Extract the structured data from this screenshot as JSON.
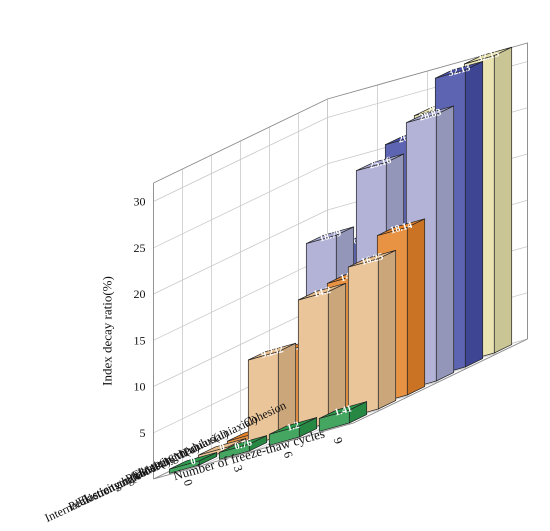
{
  "chart_data": {
    "type": "bar",
    "subtype": "3d-grouped",
    "zlabel": "Index decay ratio(%)",
    "xlabel": "Number of freeze-thaw cycles",
    "x": [
      "0",
      "3",
      "6",
      "9"
    ],
    "zticks": [
      "5",
      "10",
      "15",
      "20",
      "25",
      "30"
    ],
    "zlim": [
      0,
      32
    ],
    "grid": true,
    "series": [
      {
        "name": "Cohesion",
        "values": [
          0,
          18.21,
          28.08,
          32.15
        ],
        "labels": [
          "0",
          "18.21",
          "28.08",
          "32.15"
        ],
        "color": "#e6e0a8"
      },
      {
        "name": "Elasticity modulus(uniaxial)",
        "values": [
          0,
          16.86,
          26.45,
          32.13
        ],
        "labels": [
          "0",
          "16.86",
          "26.45",
          "32.13"
        ],
        "color": "#4750a8"
      },
      {
        "name": "Peak strength(uniaxial)",
        "values": [
          0,
          18.79,
          25.16,
          28.83
        ],
        "labels": [
          "0",
          "18.79",
          "25.16",
          "28.83"
        ],
        "color": "#a7a9d2"
      },
      {
        "name": "Elasticity modulus(16MPa)",
        "values": [
          0,
          8.441,
          14.49,
          18.14
        ],
        "labels": [
          "0",
          "8.441",
          "14.49",
          "18.14"
        ],
        "color": "#e5832a"
      },
      {
        "name": "Peak strength (16MPa)",
        "values": [
          0,
          9.232,
          14.2,
          16.25
        ],
        "labels": [
          "0",
          "9.232",
          "14.2",
          "16.25"
        ],
        "color": "#e7bd8c"
      },
      {
        "name": "Internal friction angle",
        "values": [
          0,
          0.76,
          1.2,
          1.41
        ],
        "labels": [
          "0",
          "0.76",
          "1.2",
          "1.41"
        ],
        "color": "#2b9a4c"
      }
    ]
  }
}
